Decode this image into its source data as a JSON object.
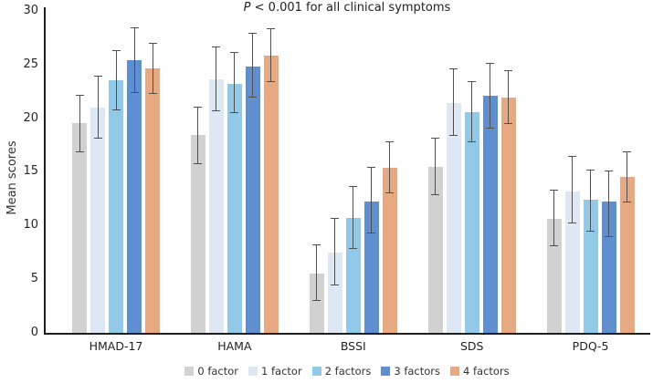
{
  "figure": {
    "title_italic": "P",
    "title_rest": " < 0.001 for all clinical symptoms",
    "y_axis_label": "Mean scores"
  },
  "chart_data": {
    "type": "bar",
    "title": "P < 0.001 for all clinical symptoms",
    "xlabel": "",
    "ylabel": "Mean scores",
    "ylim": [
      0,
      30
    ],
    "yticks": [
      0,
      5,
      10,
      15,
      20,
      25,
      30
    ],
    "grid": false,
    "legend_position": "bottom",
    "error_bars": true,
    "categories": [
      "HMAD-17",
      "HAMA",
      "BSSI",
      "SDS",
      "PDQ-5"
    ],
    "series": [
      {
        "name": "0 factor",
        "color": "#d1d1d1",
        "values": [
          19.5,
          18.4,
          5.5,
          15.5,
          10.6
        ],
        "error_low": [
          16.9,
          15.8,
          3.0,
          12.9,
          8.1
        ],
        "error_high": [
          22.1,
          21.0,
          8.2,
          18.1,
          13.3
        ]
      },
      {
        "name": "1 factor",
        "color": "#dde8f4",
        "values": [
          21.0,
          23.6,
          7.5,
          21.4,
          13.2
        ],
        "error_low": [
          18.1,
          20.7,
          4.5,
          18.4,
          10.2
        ],
        "error_high": [
          23.9,
          26.6,
          10.7,
          24.6,
          16.4
        ]
      },
      {
        "name": "2 factors",
        "color": "#92c8e8",
        "values": [
          23.5,
          23.2,
          10.7,
          20.6,
          12.4
        ],
        "error_low": [
          20.8,
          20.5,
          7.9,
          17.8,
          9.5
        ],
        "error_high": [
          26.3,
          26.1,
          13.6,
          23.4,
          15.2
        ]
      },
      {
        "name": "3 factors",
        "color": "#5f8fd1",
        "values": [
          25.4,
          24.8,
          12.2,
          22.1,
          12.2
        ],
        "error_low": [
          22.4,
          22.0,
          9.3,
          19.1,
          9.0
        ],
        "error_high": [
          28.4,
          27.9,
          15.4,
          25.1,
          15.1
        ]
      },
      {
        "name": "4 factors",
        "color": "#e7a982",
        "values": [
          24.6,
          25.8,
          15.4,
          21.9,
          14.5
        ],
        "error_low": [
          22.3,
          23.4,
          13.0,
          19.5,
          12.2
        ],
        "error_high": [
          27.0,
          28.3,
          17.8,
          24.4,
          16.9
        ]
      }
    ],
    "error_bar_color": "#4f4f4f",
    "axis_color": "#1f1f1f"
  }
}
